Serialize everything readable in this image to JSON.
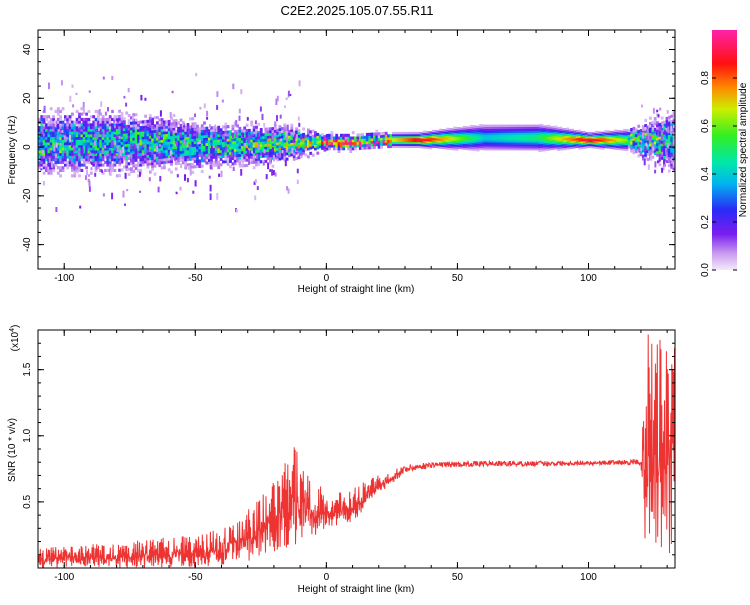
{
  "title": "C2E2.2025.105.07.55.R11",
  "colors": {
    "snr_line": "#ee3333",
    "axis": "#000000",
    "background": "#ffffff"
  },
  "chart_data": [
    {
      "type": "heatmap",
      "title": "C2E2.2025.105.07.55.R11",
      "xlabel": "Height of straight line (km)",
      "ylabel": "Frequency (Hz)",
      "xlim": [
        -110,
        133
      ],
      "ylim": [
        -50,
        48
      ],
      "xticks": [
        -100,
        -50,
        0,
        50,
        100
      ],
      "yticks": [
        -40,
        -20,
        0,
        20,
        40
      ],
      "grid": false,
      "colorbar": {
        "label": "Normalized spectral amplitude",
        "range": [
          0.0,
          1.0
        ],
        "ticks": [
          0.0,
          0.2,
          0.4,
          0.6,
          0.8
        ],
        "colormap": "rainbow (white-purple-blue-cyan-green-yellow-red-magenta)",
        "position": "right"
      },
      "ridge": [
        {
          "x": -110,
          "f_center": 2,
          "f_halfwidth": 8,
          "peak_amp": 0.45
        },
        {
          "x": -80,
          "f_center": 2,
          "f_halfwidth": 8,
          "peak_amp": 0.45
        },
        {
          "x": -50,
          "f_center": 1,
          "f_halfwidth": 6,
          "peak_amp": 0.45
        },
        {
          "x": -20,
          "f_center": 1,
          "f_halfwidth": 5,
          "peak_amp": 0.55
        },
        {
          "x": -5,
          "f_center": 2,
          "f_halfwidth": 3,
          "peak_amp": 0.6
        },
        {
          "x": 0,
          "f_center": 2,
          "f_halfwidth": 2,
          "peak_amp": 0.95
        },
        {
          "x": 10,
          "f_center": 2,
          "f_halfwidth": 2,
          "peak_amp": 0.95
        },
        {
          "x": 25,
          "f_center": 3,
          "f_halfwidth": 2,
          "peak_amp": 0.7
        },
        {
          "x": 35,
          "f_center": 3,
          "f_halfwidth": 2,
          "peak_amp": 0.95
        },
        {
          "x": 60,
          "f_center": 4,
          "f_halfwidth": 4,
          "peak_amp": 0.4
        },
        {
          "x": 80,
          "f_center": 4,
          "f_halfwidth": 4,
          "peak_amp": 0.5
        },
        {
          "x": 100,
          "f_center": 3,
          "f_halfwidth": 2,
          "peak_amp": 0.95
        },
        {
          "x": 115,
          "f_center": 3,
          "f_halfwidth": 3,
          "peak_amp": 0.6
        },
        {
          "x": 133,
          "f_center": 2,
          "f_halfwidth": 8,
          "peak_amp": 0.45
        }
      ]
    },
    {
      "type": "line",
      "xlabel": "Height of straight line (km)",
      "ylabel": "SNR (10 * v/v)",
      "yscale_label": "(x10",
      "yscale_exponent": "4",
      "xlim": [
        -110,
        133
      ],
      "ylim": [
        0,
        1.8
      ],
      "xticks": [
        -100,
        -50,
        0,
        50,
        100
      ],
      "yticks": [
        0.5,
        1.0,
        1.5
      ],
      "grid": false,
      "series": [
        {
          "color": "#ee3333",
          "envelope": [
            {
              "x": -110,
              "low": 0.0,
              "high": 0.15
            },
            {
              "x": -80,
              "low": 0.0,
              "high": 0.2
            },
            {
              "x": -50,
              "low": 0.0,
              "high": 0.25
            },
            {
              "x": -35,
              "low": 0.02,
              "high": 0.35
            },
            {
              "x": -20,
              "low": 0.1,
              "high": 0.65
            },
            {
              "x": -12,
              "low": 0.15,
              "high": 0.93
            },
            {
              "x": 0,
              "low": 0.3,
              "high": 0.55
            },
            {
              "x": 10,
              "low": 0.35,
              "high": 0.6
            },
            {
              "x": 20,
              "low": 0.55,
              "high": 0.72
            },
            {
              "x": 30,
              "low": 0.72,
              "high": 0.78
            },
            {
              "x": 40,
              "low": 0.76,
              "high": 0.8
            },
            {
              "x": 60,
              "low": 0.77,
              "high": 0.81
            },
            {
              "x": 80,
              "low": 0.77,
              "high": 0.81
            },
            {
              "x": 100,
              "low": 0.78,
              "high": 0.81
            },
            {
              "x": 120,
              "low": 0.78,
              "high": 0.82
            },
            {
              "x": 122,
              "low": 0.05,
              "high": 1.8
            },
            {
              "x": 133,
              "low": 0.05,
              "high": 1.75
            }
          ]
        }
      ]
    }
  ]
}
